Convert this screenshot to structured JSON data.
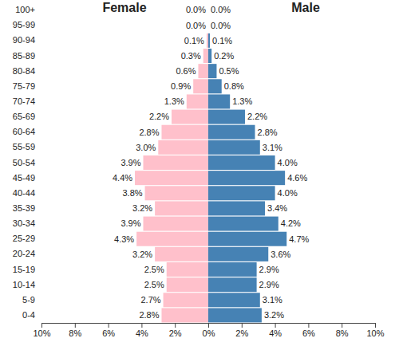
{
  "chart_data": {
    "type": "bar",
    "orientation": "horizontal",
    "data_labels": true,
    "categories": [
      "0-4",
      "5-9",
      "10-14",
      "15-19",
      "20-24",
      "25-29",
      "30-34",
      "35-39",
      "40-44",
      "45-49",
      "50-54",
      "55-59",
      "60-64",
      "65-69",
      "70-74",
      "75-79",
      "80-84",
      "85-89",
      "90-94",
      "95-99",
      "100+"
    ],
    "series": [
      {
        "name": "Female",
        "color": "#ffc0cb",
        "values": [
          2.8,
          2.7,
          2.5,
          2.5,
          3.2,
          4.3,
          3.9,
          3.2,
          3.8,
          4.4,
          3.9,
          3.0,
          2.8,
          2.2,
          1.3,
          0.9,
          0.6,
          0.3,
          0.1,
          0.0,
          0.0
        ],
        "value_labels": [
          "2.8%",
          "2.7%",
          "2.5%",
          "2.5%",
          "3.2%",
          "4.3%",
          "3.9%",
          "3.2%",
          "3.8%",
          "4.4%",
          "3.9%",
          "3.0%",
          "2.8%",
          "2.2%",
          "1.3%",
          "0.9%",
          "0.6%",
          "0.3%",
          "0.1%",
          "0.0%",
          "0.0%"
        ]
      },
      {
        "name": "Male",
        "color": "#4682b4",
        "values": [
          3.2,
          3.1,
          2.9,
          2.9,
          3.6,
          4.7,
          4.2,
          3.4,
          4.0,
          4.6,
          4.0,
          3.1,
          2.8,
          2.2,
          1.3,
          0.8,
          0.5,
          0.2,
          0.1,
          0.0,
          0.0
        ],
        "value_labels": [
          "3.2%",
          "3.1%",
          "2.9%",
          "2.9%",
          "3.6%",
          "4.7%",
          "4.2%",
          "3.4%",
          "4.0%",
          "4.6%",
          "4.0%",
          "3.1%",
          "2.8%",
          "2.2%",
          "1.3%",
          "0.8%",
          "0.5%",
          "0.2%",
          "0.1%",
          "0.0%",
          "0.0%"
        ]
      }
    ],
    "xlim": [
      0,
      10
    ],
    "xticks": [
      {
        "value": 0,
        "label": "0%"
      },
      {
        "value": 2,
        "label": "2%"
      },
      {
        "value": 4,
        "label": "4%"
      },
      {
        "value": 6,
        "label": "6%"
      },
      {
        "value": 8,
        "label": "8%"
      },
      {
        "value": 10,
        "label": "10%"
      }
    ]
  }
}
